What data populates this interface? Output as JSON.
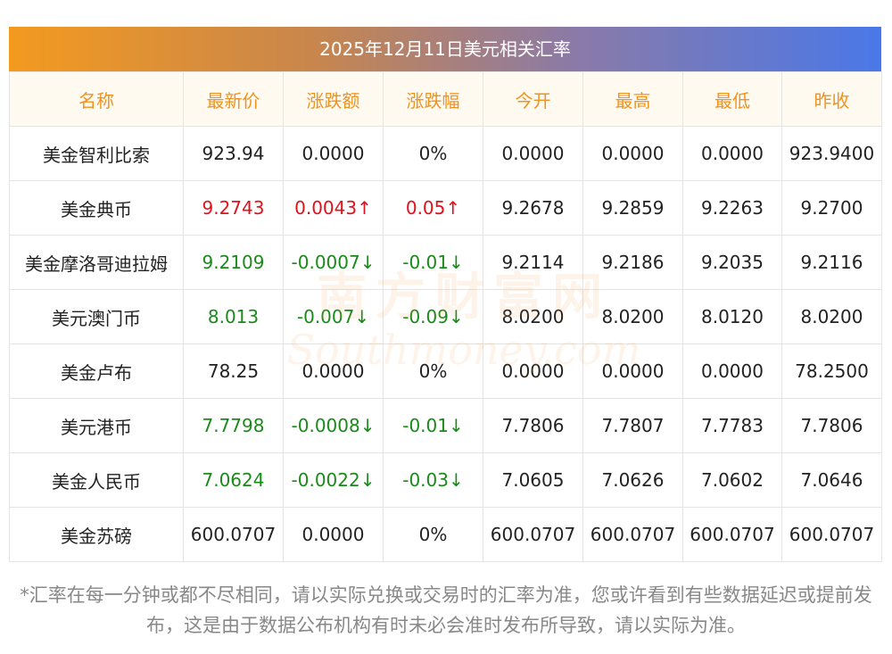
{
  "title": "2025年12月11日美元相关汇率",
  "columns": [
    "名称",
    "最新价",
    "涨跌额",
    "涨跌幅",
    "今开",
    "最高",
    "最低",
    "昨收"
  ],
  "rows": [
    {
      "name": "美金智利比索",
      "latest": "923.94",
      "change": "0.0000",
      "pct": "0%",
      "open": "0.0000",
      "high": "0.0000",
      "low": "0.0000",
      "prev": "923.9400",
      "trend": "flat"
    },
    {
      "name": "美金典币",
      "latest": "9.2743",
      "change": "0.0043↑",
      "pct": "0.05↑",
      "open": "9.2678",
      "high": "9.2859",
      "low": "9.2263",
      "prev": "9.2700",
      "trend": "up"
    },
    {
      "name": "美金摩洛哥迪拉姆",
      "latest": "9.2109",
      "change": "-0.0007↓",
      "pct": "-0.01↓",
      "open": "9.2114",
      "high": "9.2186",
      "low": "9.2035",
      "prev": "9.2116",
      "trend": "down"
    },
    {
      "name": "美元澳门币",
      "latest": "8.013",
      "change": "-0.007↓",
      "pct": "-0.09↓",
      "open": "8.0200",
      "high": "8.0200",
      "low": "8.0120",
      "prev": "8.0200",
      "trend": "down"
    },
    {
      "name": "美金卢布",
      "latest": "78.25",
      "change": "0.0000",
      "pct": "0%",
      "open": "0.0000",
      "high": "0.0000",
      "low": "0.0000",
      "prev": "78.2500",
      "trend": "flat"
    },
    {
      "name": "美元港币",
      "latest": "7.7798",
      "change": "-0.0008↓",
      "pct": "-0.01↓",
      "open": "7.7806",
      "high": "7.7807",
      "low": "7.7783",
      "prev": "7.7806",
      "trend": "down"
    },
    {
      "name": "美金人民币",
      "latest": "7.0624",
      "change": "-0.0022↓",
      "pct": "-0.03↓",
      "open": "7.0605",
      "high": "7.0626",
      "low": "7.0602",
      "prev": "7.0646",
      "trend": "down"
    },
    {
      "name": "美金苏磅",
      "latest": "600.0707",
      "change": "0.0000",
      "pct": "0%",
      "open": "600.0707",
      "high": "600.0707",
      "low": "600.0707",
      "prev": "600.0707",
      "trend": "flat"
    }
  ],
  "watermark": {
    "cn": "南方财富网",
    "en": "Southmoney.com"
  },
  "footnote": "*汇率在每一分钟或都不尽相同，请以实际兑换或交易时的汇率为准，您或许看到有些数据延迟或提前发布，这是由于数据公布机构有时未必会准时发布所导致，请以实际为准。",
  "colors": {
    "header_text": "#f0921e",
    "up": "#e0111b",
    "down": "#1a8a1a",
    "gradient_start": "#f39a1f",
    "gradient_end": "#4a78e8"
  }
}
